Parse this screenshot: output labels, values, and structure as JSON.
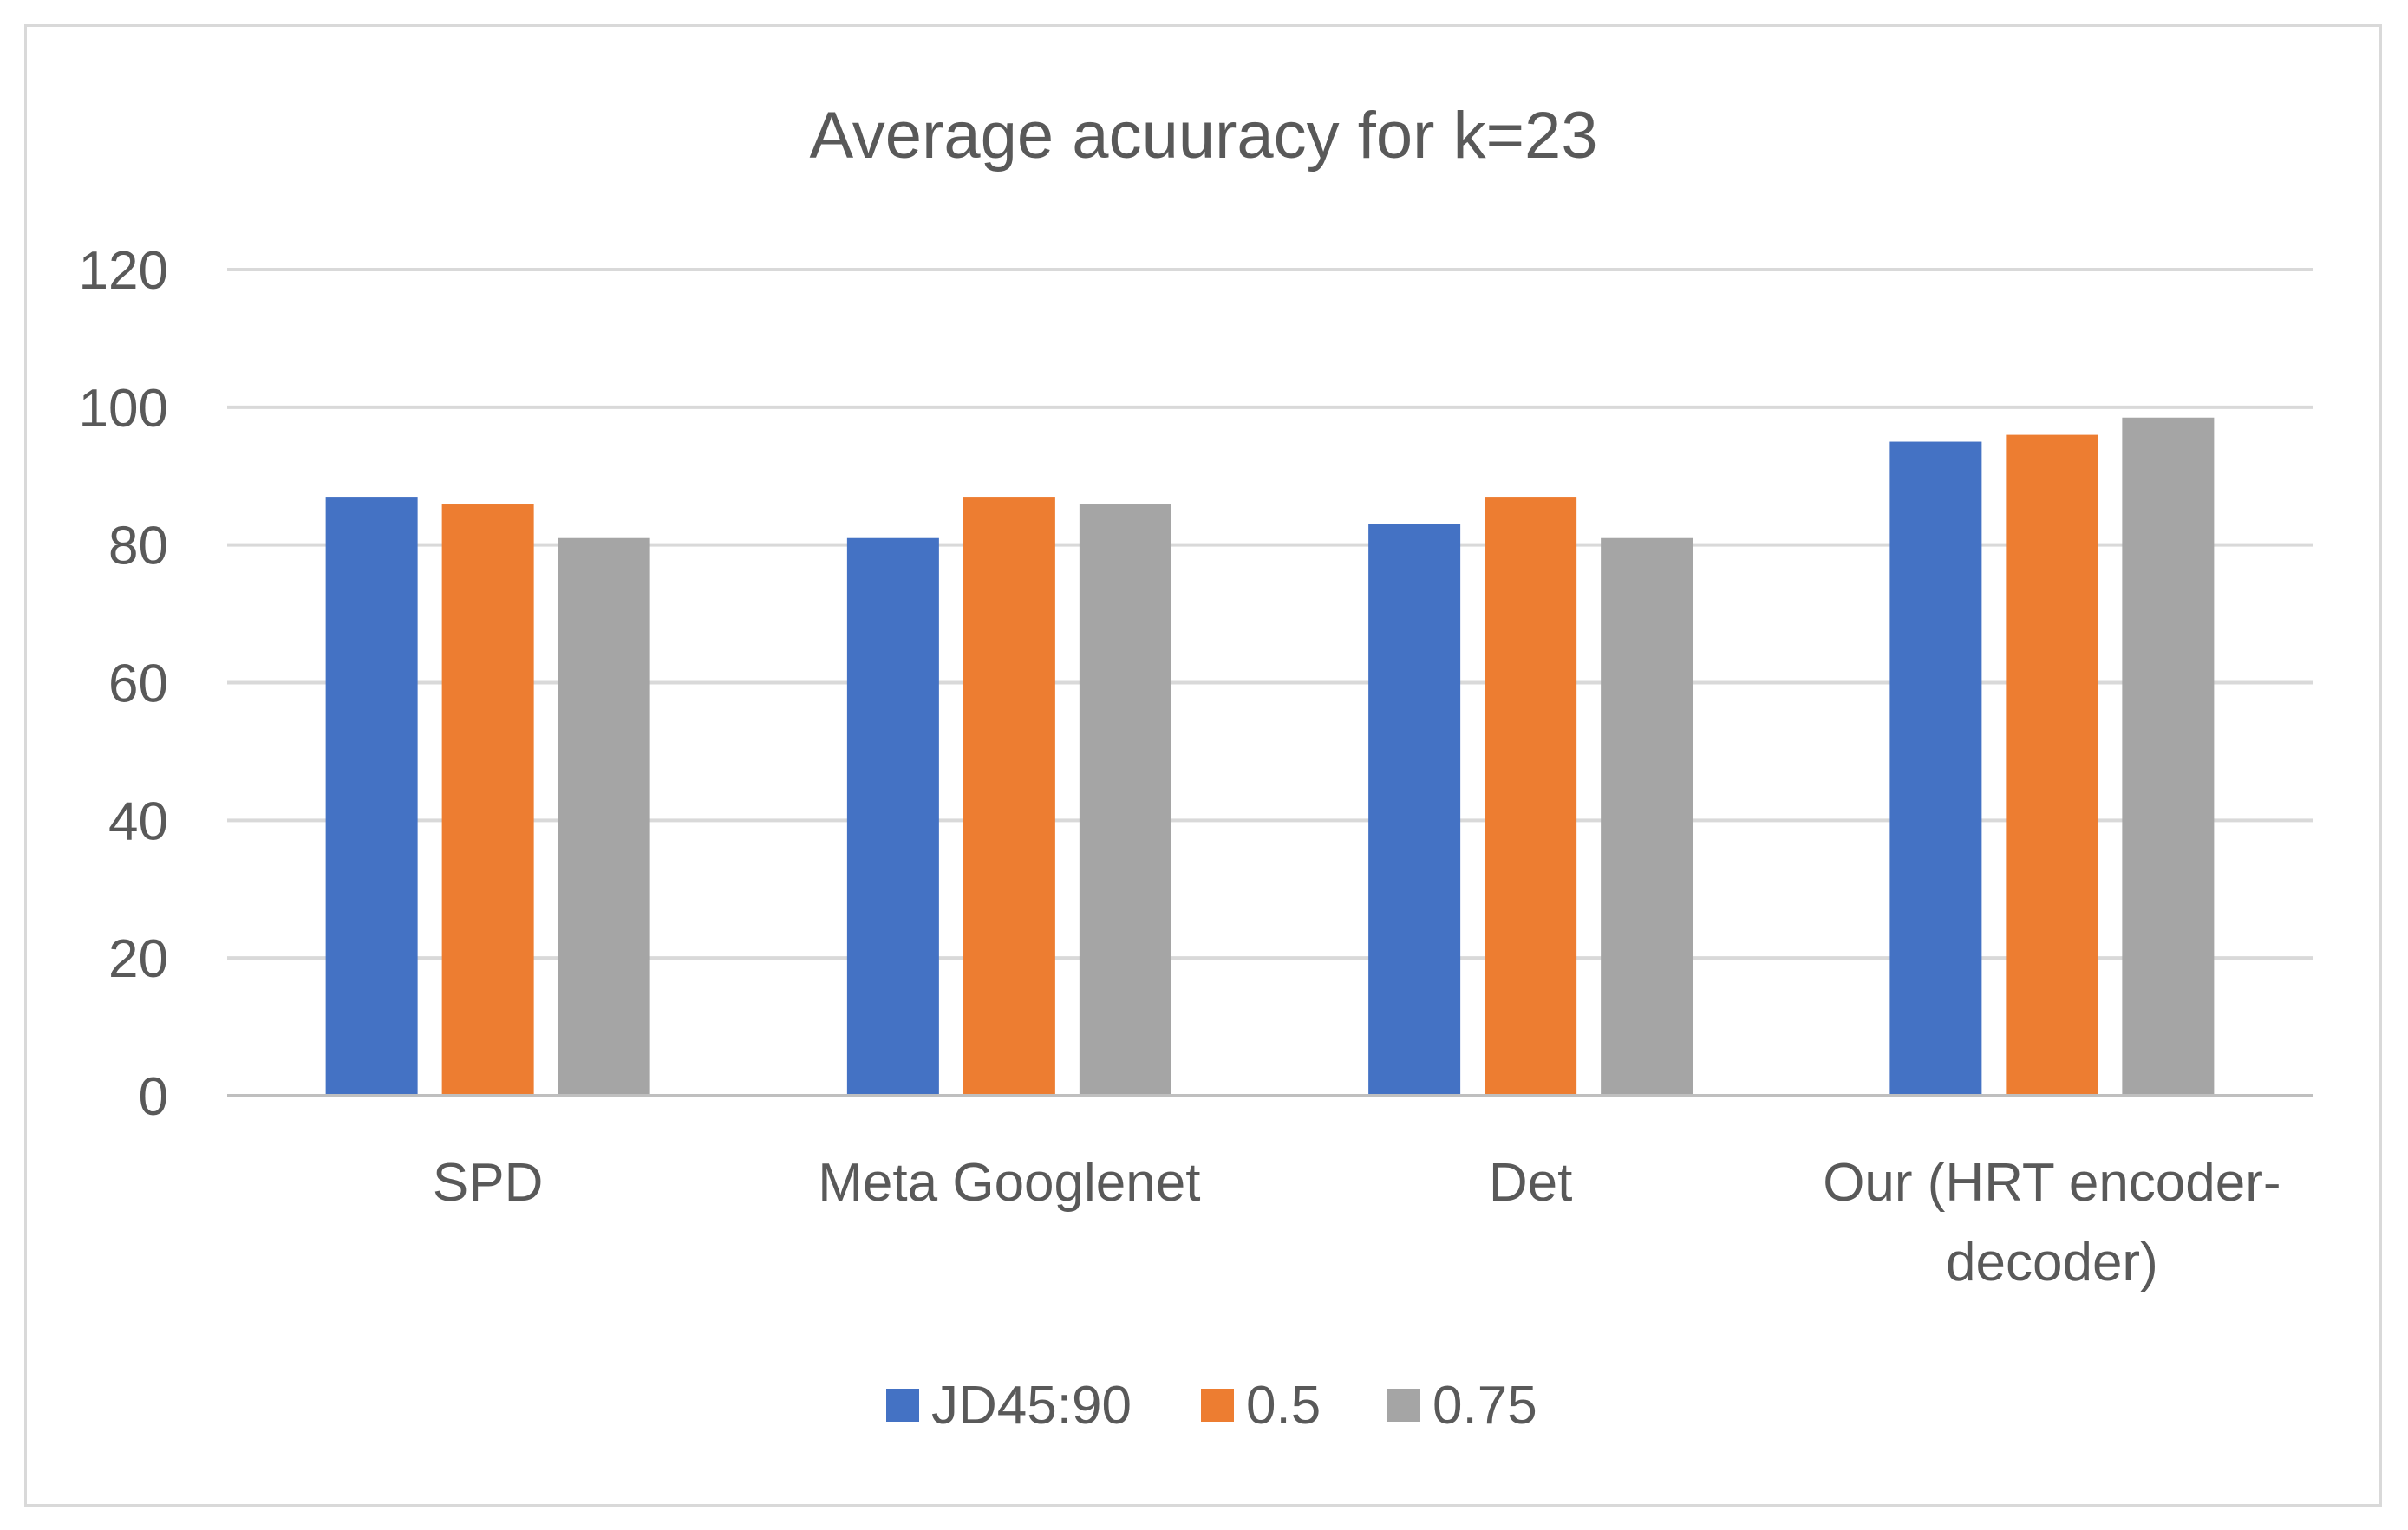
{
  "chart_data": {
    "type": "bar",
    "title": "Average acuuracy for k=23",
    "xlabel": "",
    "ylabel": "",
    "ylim": [
      0,
      120
    ],
    "yticks": [
      0,
      20,
      40,
      60,
      80,
      100,
      120
    ],
    "ytick_labels": [
      "0",
      "20",
      "40",
      "60",
      "80",
      "100",
      "120"
    ],
    "grid": true,
    "legend_position": "bottom",
    "categories": [
      [
        "SPD"
      ],
      [
        "Meta Googlenet"
      ],
      [
        "Det"
      ],
      [
        "Our (HRT encoder-",
        "decoder)"
      ]
    ],
    "series": [
      {
        "name": "JD45:90",
        "color": "#4472c4",
        "values": [
          87,
          81,
          83,
          95
        ]
      },
      {
        "name": "0.5",
        "color": "#ed7d31",
        "values": [
          86,
          87,
          87,
          96
        ]
      },
      {
        "name": "0.75",
        "color": "#a5a5a5",
        "values": [
          81,
          86,
          81,
          98.5
        ]
      }
    ]
  },
  "colors": {
    "gridline": "#d9d9d9",
    "axis_line": "#bfbfbf",
    "text": "#595959",
    "frame": "#d9d9d9"
  }
}
